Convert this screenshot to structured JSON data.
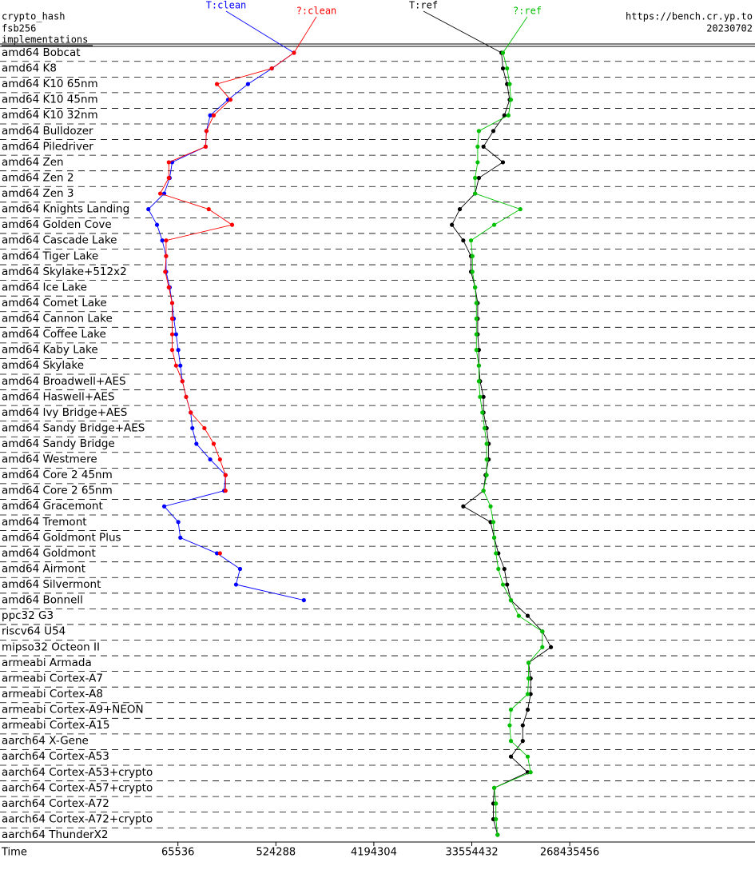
{
  "chart_data": {
    "type": "line",
    "header_left": [
      "crypto_hash",
      "fsb256",
      "implementations"
    ],
    "header_right": [
      "https://bench.cr.yp.to",
      "20230702"
    ],
    "x_label": "Time",
    "xscale": "log",
    "xlim": [
      1500,
      13700000000
    ],
    "xticks": [
      65536,
      524288,
      4194304,
      33554432,
      268435456
    ],
    "categories": [
      "amd64 Bobcat",
      "amd64 K8",
      "amd64 K10 65nm",
      "amd64 K10 45nm",
      "amd64 K10 32nm",
      "amd64 Bulldozer",
      "amd64 Piledriver",
      "amd64 Zen",
      "amd64 Zen 2",
      "amd64 Zen 3",
      "amd64 Knights Landing",
      "amd64 Golden Cove",
      "amd64 Cascade Lake",
      "amd64 Tiger Lake",
      "amd64 Skylake+512x2",
      "amd64 Ice Lake",
      "amd64 Comet Lake",
      "amd64 Cannon Lake",
      "amd64 Coffee Lake",
      "amd64 Kaby Lake",
      "amd64 Skylake",
      "amd64 Broadwell+AES",
      "amd64 Haswell+AES",
      "amd64 Ivy Bridge+AES",
      "amd64 Sandy Bridge+AES",
      "amd64 Sandy Bridge",
      "amd64 Westmere",
      "amd64 Core 2 45nm",
      "amd64 Core 2 65nm",
      "amd64 Gracemont",
      "amd64 Tremont",
      "amd64 Goldmont Plus",
      "amd64 Goldmont",
      "amd64 Airmont",
      "amd64 Silvermont",
      "amd64 Bonnell",
      "ppc32 G3",
      "riscv64 U54",
      "mipso32 Octeon II",
      "armeabi Armada",
      "armeabi Cortex-A7",
      "armeabi Cortex-A8",
      "armeabi Cortex-A9+NEON",
      "armeabi Cortex-A15",
      "aarch64 X-Gene",
      "aarch64 Cortex-A53",
      "aarch64 Cortex-A53+crypto",
      "aarch64 Cortex-A57+crypto",
      "aarch64 Cortex-A72",
      "aarch64 Cortex-A72+crypto",
      "aarch64 ThunderX2"
    ],
    "series": [
      {
        "name": "T:clean",
        "color": "#0000ff",
        "values": [
          770000,
          482000,
          290000,
          190000,
          130000,
          120000,
          118000,
          58000,
          55000,
          49000,
          35000,
          42000,
          47000,
          51000,
          51000,
          55000,
          58000,
          60000,
          63000,
          66000,
          69000,
          72000,
          78000,
          86000,
          89000,
          97000,
          130000,
          180000,
          175000,
          49000,
          66000,
          69000,
          150000,
          245000,
          225000,
          950000,
          null,
          null,
          null,
          null,
          null,
          null,
          null,
          null,
          null,
          null,
          null,
          null,
          null,
          null,
          null
        ]
      },
      {
        "name": "?:clean",
        "color": "#ff0000",
        "values": [
          770000,
          480000,
          150000,
          200000,
          140000,
          120000,
          118000,
          54000,
          54000,
          45000,
          126000,
          207000,
          51000,
          51000,
          50000,
          54000,
          58000,
          58000,
          58000,
          58000,
          63000,
          72000,
          78000,
          86000,
          115000,
          140000,
          160000,
          180000,
          180000,
          null,
          null,
          null,
          160000,
          null,
          null,
          null,
          null,
          null,
          null,
          null,
          null,
          null,
          null,
          null,
          null,
          null,
          null,
          null,
          null,
          null,
          null
        ]
      },
      {
        "name": "T:ref",
        "color": "#000000",
        "values": [
          63000000,
          65000000,
          71000000,
          75000000,
          67000000,
          53000000,
          43000000,
          65000000,
          39000000,
          36000000,
          26000000,
          22000000,
          28000000,
          33000000,
          33000000,
          36000000,
          38000000,
          38000000,
          38000000,
          39000000,
          39000000,
          40000000,
          43000000,
          43000000,
          46000000,
          48000000,
          48000000,
          45000000,
          43000000,
          28000000,
          50000000,
          54000000,
          59000000,
          67000000,
          71000000,
          77000000,
          110000000,
          150000000,
          180000000,
          112000000,
          117000000,
          117000000,
          110000000,
          99000000,
          99000000,
          77000000,
          110000000,
          54000000,
          53000000,
          53000000,
          58000000
        ]
      },
      {
        "name": "?:ref",
        "color": "#00c000",
        "values": [
          65000000,
          71000000,
          75000000,
          77000000,
          73000000,
          39000000,
          38000000,
          38000000,
          36000000,
          36000000,
          94000000,
          54000000,
          33000000,
          34000000,
          34000000,
          36000000,
          37000000,
          37000000,
          37000000,
          37000000,
          39000000,
          39000000,
          40000000,
          42000000,
          44000000,
          46000000,
          46000000,
          46000000,
          43000000,
          50000000,
          53000000,
          54000000,
          56000000,
          59000000,
          65000000,
          77000000,
          91000000,
          150000000,
          150000000,
          112000000,
          112000000,
          110000000,
          77000000,
          75000000,
          77000000,
          110000000,
          117000000,
          54000000,
          56000000,
          56000000,
          58000000
        ]
      }
    ]
  }
}
